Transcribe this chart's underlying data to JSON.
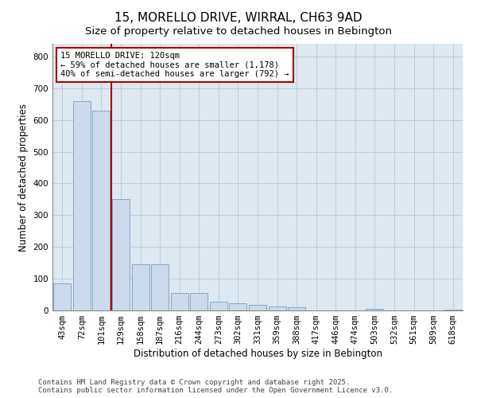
{
  "title": "15, MORELLO DRIVE, WIRRAL, CH63 9AD",
  "subtitle": "Size of property relative to detached houses in Bebington",
  "xlabel": "Distribution of detached houses by size in Bebington",
  "ylabel": "Number of detached properties",
  "categories": [
    "43sqm",
    "72sqm",
    "101sqm",
    "129sqm",
    "158sqm",
    "187sqm",
    "216sqm",
    "244sqm",
    "273sqm",
    "302sqm",
    "331sqm",
    "359sqm",
    "388sqm",
    "417sqm",
    "446sqm",
    "474sqm",
    "503sqm",
    "532sqm",
    "561sqm",
    "589sqm",
    "618sqm"
  ],
  "values": [
    85,
    660,
    630,
    350,
    145,
    145,
    55,
    55,
    28,
    23,
    18,
    13,
    10,
    0,
    0,
    0,
    4,
    0,
    0,
    0,
    2
  ],
  "bar_color": "#ccdaeb",
  "bar_edge_color": "#7aa0c0",
  "vline_color": "#aa0000",
  "annotation_text": "15 MORELLO DRIVE: 120sqm\n← 59% of detached houses are smaller (1,178)\n40% of semi-detached houses are larger (792) →",
  "annotation_box_color": "#ffffff",
  "annotation_box_edge": "#aa0000",
  "ylim": [
    0,
    840
  ],
  "yticks": [
    0,
    100,
    200,
    300,
    400,
    500,
    600,
    700,
    800
  ],
  "grid_color": "#b8cfe0",
  "background_color": "#dde8f0",
  "footer_text": "Contains HM Land Registry data © Crown copyright and database right 2025.\nContains public sector information licensed under the Open Government Licence v3.0.",
  "title_fontsize": 11,
  "subtitle_fontsize": 9.5,
  "axis_label_fontsize": 8.5,
  "tick_fontsize": 7.5,
  "annotation_fontsize": 7.5,
  "footer_fontsize": 6.5
}
